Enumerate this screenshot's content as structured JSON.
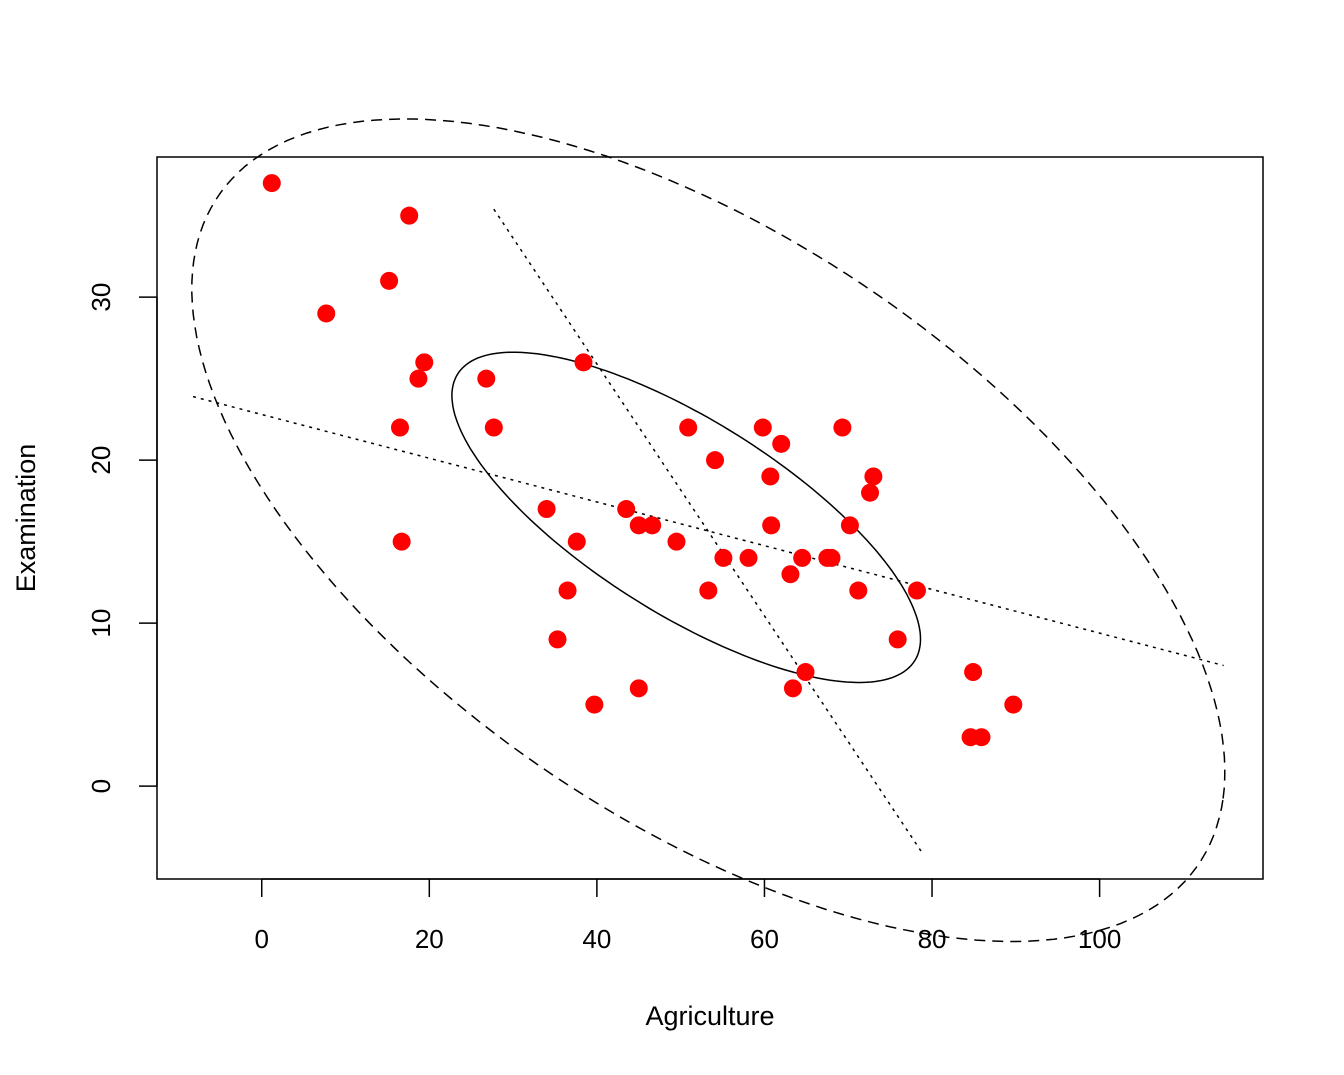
{
  "chart_data": {
    "type": "scatter",
    "title": "",
    "xlabel": "Agriculture",
    "ylabel": "Examination",
    "xlim": [
      -12.5,
      119.5
    ],
    "ylim": [
      -5.7,
      38.6
    ],
    "xticks": [
      0,
      20,
      40,
      60,
      80,
      100
    ],
    "yticks": [
      0,
      10,
      20,
      30
    ],
    "grid": false,
    "point_color": "#ff0000",
    "series": [
      {
        "x": [
          1.2,
          7.7,
          15.2,
          16.5,
          16.7,
          17.6,
          18.7,
          19.4,
          26.8,
          27.7,
          34.0,
          35.3,
          36.5,
          37.6,
          38.4,
          39.7,
          43.5,
          45.0,
          45.0,
          46.6,
          49.5,
          50.9,
          53.3,
          54.1,
          55.1,
          58.1,
          59.8,
          60.7,
          60.8,
          62.0,
          63.1,
          63.4,
          64.5,
          64.9,
          67.5,
          68.0,
          69.3,
          70.2,
          71.2,
          72.6,
          73.0,
          75.9,
          78.2,
          84.6,
          84.9,
          85.9,
          89.7
        ],
        "y": [
          37,
          29,
          31,
          22,
          15,
          35,
          25,
          26,
          25,
          22,
          17,
          9,
          12,
          15,
          26,
          5,
          17,
          16,
          6,
          16,
          15,
          22,
          12,
          20,
          14,
          14,
          22,
          19,
          16,
          21,
          13,
          6,
          14,
          7,
          14,
          14,
          22,
          16,
          12,
          18,
          19,
          9,
          12,
          3,
          7,
          3,
          5
        ]
      }
    ],
    "ellipses": [
      {
        "style": "solid",
        "center": [
          50.66,
          16.49
        ],
        "semi_axes": [
          29.0,
          6.6
        ],
        "angle_deg": -15.8
      },
      {
        "style": "dashed",
        "center": [
          53.3,
          15.7
        ],
        "semi_axes": [
          63.6,
          19.8
        ],
        "angle_deg": -15.0
      }
    ],
    "axis_lines": [
      {
        "style": "dotted",
        "from": [
          -8.2,
          23.9
        ],
        "to": [
          114.8,
          7.4
        ]
      },
      {
        "style": "dotted",
        "from": [
          27.7,
          35.4
        ],
        "to": [
          78.7,
          -4.0
        ]
      }
    ]
  }
}
